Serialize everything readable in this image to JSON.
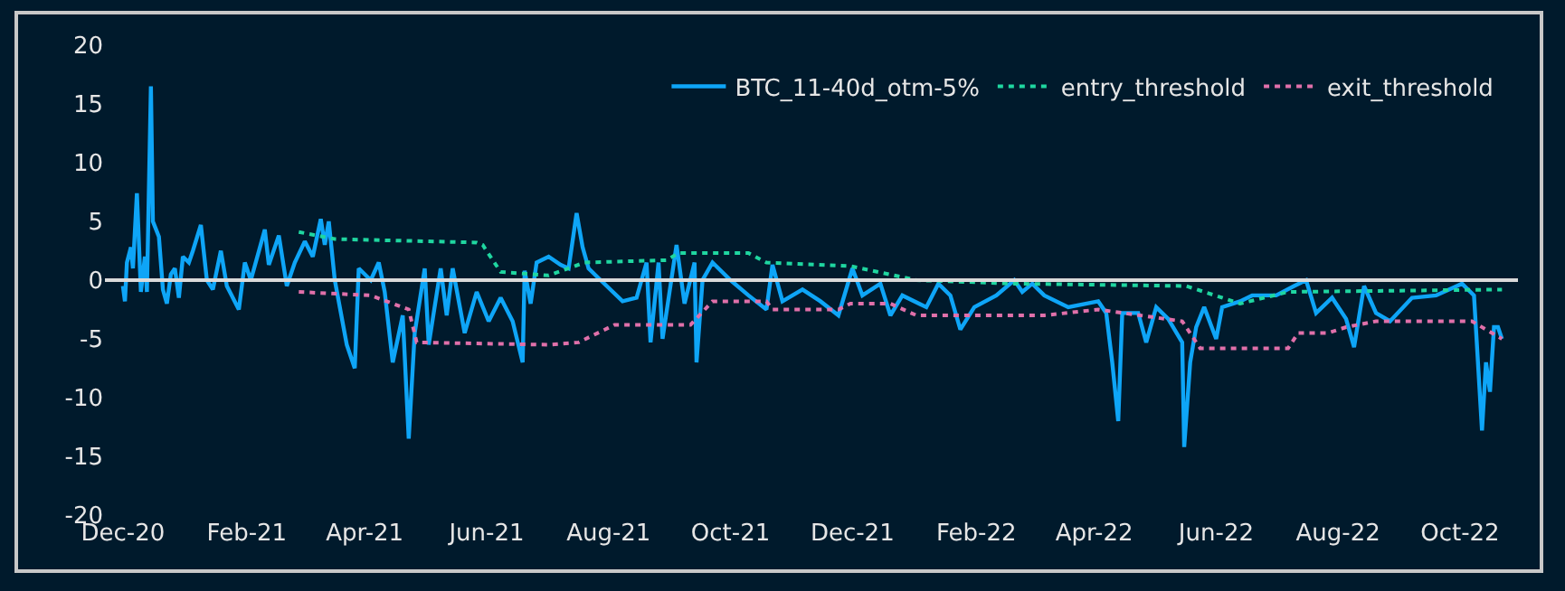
{
  "chart_data": {
    "type": "line",
    "legend": "top right",
    "grid": false,
    "marker": "none",
    "xlim": [
      "2020-11-22",
      "2022-10-30"
    ],
    "xticks": [
      {
        "value": "2020-12-01",
        "label": "Dec-20"
      },
      {
        "value": "2021-02-01",
        "label": "Feb-21"
      },
      {
        "value": "2021-04-01",
        "label": "Apr-21"
      },
      {
        "value": "2021-06-01",
        "label": "Jun-21"
      },
      {
        "value": "2021-08-01",
        "label": "Aug-21"
      },
      {
        "value": "2021-10-01",
        "label": "Oct-21"
      },
      {
        "value": "2021-12-01",
        "label": "Dec-21"
      },
      {
        "value": "2022-02-01",
        "label": "Feb-22"
      },
      {
        "value": "2022-04-01",
        "label": "Apr-22"
      },
      {
        "value": "2022-06-01",
        "label": "Jun-22"
      },
      {
        "value": "2022-08-01",
        "label": "Aug-22"
      },
      {
        "value": "2022-10-01",
        "label": "Oct-22"
      }
    ],
    "ylim": [
      -20,
      20
    ],
    "yticks": [
      -20,
      -15,
      -10,
      -5,
      0,
      5,
      10,
      15,
      20
    ],
    "ref_lines": [
      {
        "axis": "y",
        "value": 0,
        "color": "#d9d9d9"
      }
    ],
    "series": [
      {
        "name": "BTC_11-40d_otm-5%",
        "color": "#0ea5f7",
        "line_style": "solid",
        "x": [
          "2020-12-01",
          "2020-12-02",
          "2020-12-03",
          "2020-12-05",
          "2020-12-06",
          "2020-12-08",
          "2020-12-10",
          "2020-12-12",
          "2020-12-13",
          "2020-12-15",
          "2020-12-16",
          "2020-12-19",
          "2020-12-21",
          "2020-12-23",
          "2020-12-25",
          "2020-12-27",
          "2020-12-29",
          "2020-12-31",
          "2021-01-03",
          "2021-01-05",
          "2021-01-09",
          "2021-01-12",
          "2021-01-15",
          "2021-01-19",
          "2021-01-22",
          "2021-01-28",
          "2021-01-31",
          "2021-02-03",
          "2021-02-10",
          "2021-02-12",
          "2021-02-17",
          "2021-02-21",
          "2021-02-25",
          "2021-03-02",
          "2021-03-06",
          "2021-03-10",
          "2021-03-12",
          "2021-03-14",
          "2021-03-17",
          "2021-03-23",
          "2021-03-27",
          "2021-03-29",
          "2021-04-04",
          "2021-04-08",
          "2021-04-11",
          "2021-04-15",
          "2021-04-20",
          "2021-04-23",
          "2021-04-26",
          "2021-05-01",
          "2021-05-03",
          "2021-05-09",
          "2021-05-12",
          "2021-05-15",
          "2021-05-21",
          "2021-05-27",
          "2021-06-02",
          "2021-06-08",
          "2021-06-14",
          "2021-06-19",
          "2021-06-20",
          "2021-06-23",
          "2021-06-26",
          "2021-07-02",
          "2021-07-08",
          "2021-07-12",
          "2021-07-16",
          "2021-07-19",
          "2021-07-22",
          "2021-07-28",
          "2021-08-08",
          "2021-08-15",
          "2021-08-20",
          "2021-08-22",
          "2021-08-26",
          "2021-08-28",
          "2021-09-04",
          "2021-09-08",
          "2021-09-13",
          "2021-09-14",
          "2021-09-17",
          "2021-09-22",
          "2021-10-01",
          "2021-10-10",
          "2021-10-19",
          "2021-10-22",
          "2021-10-27",
          "2021-11-06",
          "2021-11-15",
          "2021-11-24",
          "2021-12-01",
          "2021-12-06",
          "2021-12-15",
          "2021-12-20",
          "2021-12-26",
          "2022-01-07",
          "2022-01-13",
          "2022-01-19",
          "2022-01-24",
          "2022-01-31",
          "2022-02-11",
          "2022-02-20",
          "2022-02-24",
          "2022-03-01",
          "2022-03-07",
          "2022-03-19",
          "2022-04-03",
          "2022-04-07",
          "2022-04-10",
          "2022-04-13",
          "2022-04-15",
          "2022-04-23",
          "2022-04-27",
          "2022-05-02",
          "2022-05-08",
          "2022-05-15",
          "2022-05-16",
          "2022-05-19",
          "2022-05-22",
          "2022-05-26",
          "2022-06-01",
          "2022-06-04",
          "2022-06-13",
          "2022-06-19",
          "2022-07-01",
          "2022-07-10",
          "2022-07-16",
          "2022-07-21",
          "2022-07-29",
          "2022-08-05",
          "2022-08-09",
          "2022-08-14",
          "2022-08-20",
          "2022-08-27",
          "2022-09-07",
          "2022-09-19",
          "2022-10-02",
          "2022-10-08",
          "2022-10-12",
          "2022-10-14",
          "2022-10-16",
          "2022-10-18",
          "2022-10-20",
          "2022-10-22"
        ],
        "values": [
          -0.5,
          -1.8,
          1.5,
          2.8,
          1,
          7.4,
          -1,
          2,
          -1,
          16.5,
          5,
          3.7,
          -0.8,
          -2,
          0.5,
          1,
          -1.5,
          2,
          1.5,
          2.5,
          4.7,
          0,
          -0.8,
          2.5,
          -0.5,
          -2.5,
          1.5,
          0,
          4.3,
          1.3,
          3.8,
          -0.5,
          1.5,
          3.3,
          2,
          5.2,
          3,
          5,
          0,
          -5.5,
          -7.5,
          1,
          0,
          1.5,
          -1,
          -7,
          -3,
          -13.5,
          -4.5,
          1,
          -5.5,
          1,
          -3,
          1,
          -4.5,
          -1,
          -3.5,
          -1.5,
          -3.5,
          -7,
          0.8,
          -2,
          1.5,
          2,
          1.3,
          1,
          5.7,
          2.8,
          1,
          0,
          -1.8,
          -1.5,
          1.5,
          -5.3,
          1.5,
          -5,
          3,
          -2,
          1.5,
          -7,
          0,
          1.5,
          0,
          -1.3,
          -2.5,
          1.3,
          -1.8,
          -0.8,
          -1.8,
          -3,
          1,
          -1.3,
          -0.3,
          -3,
          -1.3,
          -2.3,
          -0.3,
          -1.3,
          -4.2,
          -2.3,
          -1.3,
          0,
          -1,
          -0.3,
          -1.3,
          -2.3,
          -1.8,
          -2.8,
          -7,
          -12,
          -2.8,
          -2.8,
          -5.3,
          -2.3,
          -3.3,
          -5.3,
          -14.2,
          -7,
          -4,
          -2.3,
          -5,
          -2.3,
          -1.8,
          -1.3,
          -1.3,
          -0.5,
          0,
          -2.8,
          -1.5,
          -3.3,
          -5.7,
          -0.5,
          -2.8,
          -3.5,
          -1.5,
          -1.3,
          -0.3,
          -1.3,
          -12.8,
          -7,
          -9.5,
          -4,
          -4,
          -5
        ]
      },
      {
        "name": "entry_threshold",
        "color": "#1fd6a0",
        "line_style": "dotted",
        "x": [
          "2021-02-27",
          "2021-03-17",
          "2021-05-27",
          "2021-05-30",
          "2021-06-08",
          "2021-07-02",
          "2021-07-20",
          "2021-08-30",
          "2021-09-05",
          "2021-10-10",
          "2021-10-19",
          "2021-11-30",
          "2022-01-02",
          "2022-02-20",
          "2022-05-17",
          "2022-06-13",
          "2022-07-07",
          "2022-10-22"
        ],
        "values": [
          4.1,
          3.5,
          3.2,
          3,
          0.7,
          0.4,
          1.5,
          1.7,
          2.3,
          2.3,
          1.5,
          1.2,
          0,
          -0.3,
          -0.5,
          -2,
          -1,
          -0.8
        ]
      },
      {
        "name": "exit_threshold",
        "color": "#e070aa",
        "line_style": "dotted",
        "x": [
          "2021-02-27",
          "2021-04-04",
          "2021-04-23",
          "2021-04-27",
          "2021-07-02",
          "2021-07-17",
          "2021-08-04",
          "2021-09-11",
          "2021-09-22",
          "2021-10-19",
          "2021-10-22",
          "2021-11-24",
          "2021-11-30",
          "2021-12-20",
          "2022-01-02",
          "2022-03-07",
          "2022-04-03",
          "2022-05-15",
          "2022-05-24",
          "2022-07-07",
          "2022-07-12",
          "2022-07-27",
          "2022-08-05",
          "2022-08-20",
          "2022-10-07",
          "2022-10-22"
        ],
        "values": [
          -1,
          -1.3,
          -2.5,
          -5.3,
          -5.5,
          -5.3,
          -3.8,
          -3.8,
          -1.8,
          -1.8,
          -2.5,
          -2.5,
          -2,
          -2,
          -3,
          -3,
          -2.5,
          -3.5,
          -5.8,
          -5.8,
          -4.5,
          -4.5,
          -4,
          -3.5,
          -3.5,
          -5
        ]
      }
    ]
  }
}
